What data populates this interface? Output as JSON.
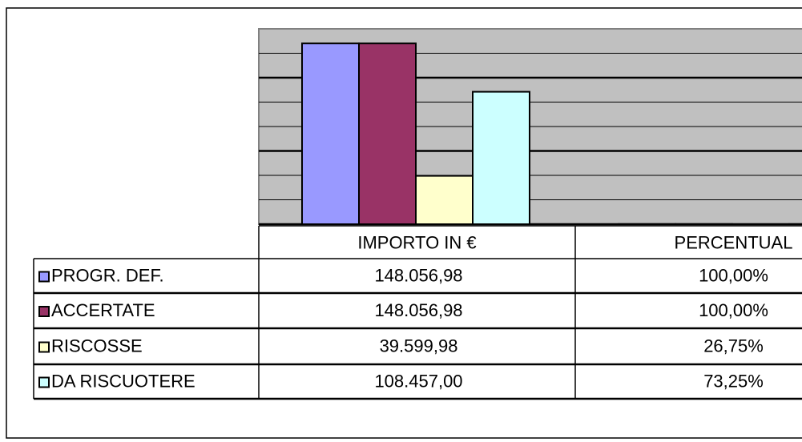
{
  "chart_data": {
    "type": "bar",
    "categories": [
      "IMPORTO IN €",
      "PERCENTUAL"
    ],
    "series": [
      {
        "name": "PROGR. DEF.",
        "color": "#9999ff",
        "values": [
          148056.98,
          100
        ],
        "value_labels": [
          "148.056,98",
          "100,00%"
        ]
      },
      {
        "name": "ACCERTATE",
        "color": "#993366",
        "values": [
          148056.98,
          100
        ],
        "value_labels": [
          "148.056,98",
          "100,00%"
        ]
      },
      {
        "name": "RISCOSSE",
        "color": "#ffffcc",
        "values": [
          39599.98,
          26.75
        ],
        "value_labels": [
          "39.599,98",
          "26,75%"
        ]
      },
      {
        "name": "DA RISCUOTERE",
        "color": "#ccffff",
        "values": [
          108457.0,
          73.25
        ],
        "value_labels": [
          "108.457,00",
          "73,25%"
        ]
      }
    ],
    "ylim": [
      0,
      160000
    ],
    "yticks": [
      0,
      60000,
      120000
    ],
    "minor_yticks": [
      20000,
      40000,
      80000,
      100000,
      140000
    ],
    "grid": true,
    "plot_background": "#c0c0c0"
  }
}
